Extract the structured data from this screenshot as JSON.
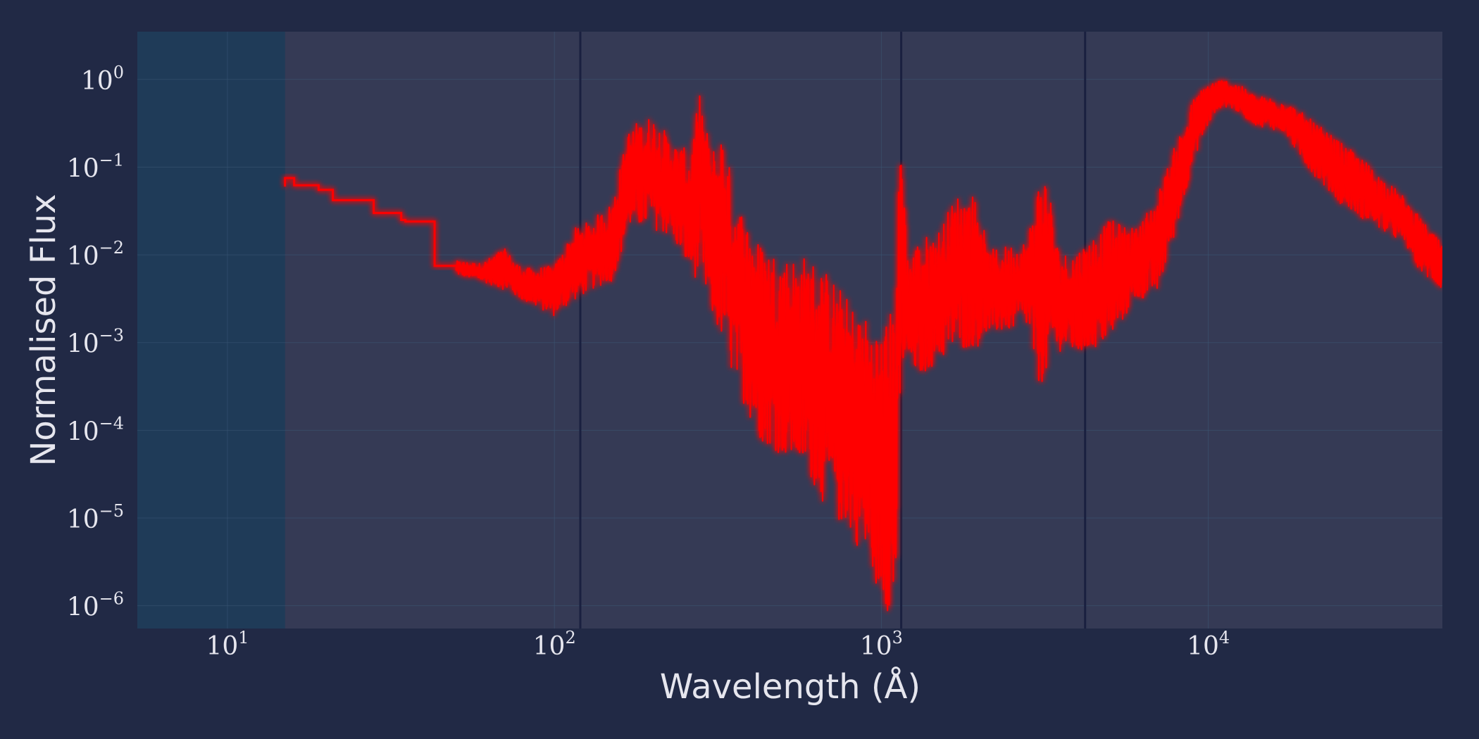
{
  "chart_data": {
    "type": "line",
    "title": "",
    "xlabel": "Wavelength (Å)",
    "ylabel": "Normalised Flux",
    "x_scale": "log",
    "y_scale": "log",
    "xlim": [
      5.3,
      52000
    ],
    "ylim": [
      5.5e-07,
      3.5
    ],
    "grid": true,
    "legend": "none",
    "x_ticks": [
      {
        "value": 10,
        "base": "10",
        "exp": "1"
      },
      {
        "value": 100,
        "base": "10",
        "exp": "2"
      },
      {
        "value": 1000,
        "base": "10",
        "exp": "3"
      },
      {
        "value": 10000,
        "base": "10",
        "exp": "4"
      }
    ],
    "y_ticks": [
      {
        "value": 1,
        "base": "10",
        "exp": "0"
      },
      {
        "value": 0.1,
        "base": "10",
        "exp": "−1"
      },
      {
        "value": 0.01,
        "base": "10",
        "exp": "−2"
      },
      {
        "value": 0.001,
        "base": "10",
        "exp": "−3"
      },
      {
        "value": 0.0001,
        "base": "10",
        "exp": "−4"
      },
      {
        "value": 1e-05,
        "base": "10",
        "exp": "−5"
      },
      {
        "value": 1e-06,
        "base": "10",
        "exp": "−6"
      }
    ],
    "vertical_lines": [
      120,
      1150,
      4200
    ],
    "shaded_region": [
      15,
      52000
    ],
    "colors": {
      "background": "#212945",
      "plot_area": "#1f3b58",
      "shaded": "#353a55",
      "line": "#ff0000",
      "grid": "#3b5874",
      "vline": "#1a2040",
      "text": "#e6e6ee"
    },
    "series": [
      {
        "name": "spectrum",
        "step_envelope": [
          [
            15,
            0.06
          ],
          [
            15,
            0.075
          ],
          [
            16,
            0.075
          ],
          [
            16,
            0.062
          ],
          [
            19,
            0.062
          ],
          [
            19,
            0.055
          ],
          [
            21,
            0.055
          ],
          [
            21,
            0.042
          ],
          [
            28,
            0.042
          ],
          [
            28,
            0.03
          ],
          [
            34,
            0.03
          ],
          [
            34,
            0.025
          ],
          [
            35,
            0.025
          ],
          [
            35,
            0.024
          ],
          [
            43,
            0.024
          ],
          [
            43,
            0.0075
          ],
          [
            50,
            0.0075
          ]
        ],
        "upper_envelope": [
          [
            50,
            0.0085
          ],
          [
            60,
            0.008
          ],
          [
            70,
            0.012
          ],
          [
            80,
            0.007
          ],
          [
            100,
            0.0075
          ],
          [
            115,
            0.02
          ],
          [
            130,
            0.025
          ],
          [
            150,
            0.04
          ],
          [
            170,
            0.3
          ],
          [
            200,
            0.4
          ],
          [
            230,
            0.2
          ],
          [
            260,
            0.15
          ],
          [
            280,
            0.8
          ],
          [
            300,
            0.15
          ],
          [
            330,
            0.3
          ],
          [
            350,
            0.06
          ],
          [
            380,
            0.03
          ],
          [
            420,
            0.015
          ],
          [
            500,
            0.01
          ],
          [
            600,
            0.01
          ],
          [
            700,
            0.006
          ],
          [
            800,
            0.003
          ],
          [
            900,
            0.002
          ],
          [
            1000,
            0.0015
          ],
          [
            1100,
            0.003
          ],
          [
            1150,
            0.5
          ],
          [
            1200,
            0.01
          ],
          [
            1300,
            0.015
          ],
          [
            1500,
            0.02
          ],
          [
            1700,
            0.05
          ],
          [
            2000,
            0.05
          ],
          [
            2100,
            0.011
          ],
          [
            2800,
            0.015
          ],
          [
            3000,
            0.07
          ],
          [
            3200,
            0.1
          ],
          [
            3500,
            0.01
          ],
          [
            4000,
            0.012
          ],
          [
            5000,
            0.025
          ],
          [
            6000,
            0.02
          ],
          [
            7000,
            0.05
          ],
          [
            8000,
            0.2
          ],
          [
            9000,
            0.6
          ],
          [
            10000,
            0.95
          ],
          [
            11000,
            1.0
          ],
          [
            12000,
            0.95
          ],
          [
            14000,
            0.65
          ],
          [
            17000,
            0.6
          ],
          [
            20000,
            0.38
          ],
          [
            25000,
            0.2
          ],
          [
            30000,
            0.12
          ],
          [
            40000,
            0.045
          ],
          [
            45000,
            0.025
          ],
          [
            52000,
            0.013
          ]
        ],
        "lower_envelope": [
          [
            50,
            0.006
          ],
          [
            60,
            0.005
          ],
          [
            70,
            0.004
          ],
          [
            80,
            0.003
          ],
          [
            100,
            0.002
          ],
          [
            115,
            0.003
          ],
          [
            130,
            0.004
          ],
          [
            150,
            0.005
          ],
          [
            170,
            0.02
          ],
          [
            200,
            0.02
          ],
          [
            230,
            0.015
          ],
          [
            260,
            0.006
          ],
          [
            280,
            0.005
          ],
          [
            300,
            0.002
          ],
          [
            330,
            0.0009
          ],
          [
            350,
            0.0004
          ],
          [
            380,
            0.0002
          ],
          [
            420,
            8e-05
          ],
          [
            500,
            5e-05
          ],
          [
            600,
            3e-05
          ],
          [
            700,
            1e-05
          ],
          [
            800,
            7e-06
          ],
          [
            900,
            3e-06
          ],
          [
            1000,
            1.2e-06
          ],
          [
            1100,
            6e-07
          ],
          [
            1150,
            0.0004
          ],
          [
            1200,
            0.0005
          ],
          [
            1300,
            0.0004
          ],
          [
            1500,
            0.0006
          ],
          [
            1700,
            0.0008
          ],
          [
            2000,
            0.0009
          ],
          [
            2100,
            0.0012
          ],
          [
            2800,
            0.0015
          ],
          [
            3000,
            0.0003
          ],
          [
            3200,
            0.0004
          ],
          [
            3500,
            0.0008
          ],
          [
            4000,
            0.0007
          ],
          [
            5000,
            0.001
          ],
          [
            6000,
            0.003
          ],
          [
            7000,
            0.0035
          ],
          [
            8000,
            0.02
          ],
          [
            9000,
            0.12
          ],
          [
            10000,
            0.3
          ],
          [
            11000,
            0.5
          ],
          [
            12000,
            0.45
          ],
          [
            14000,
            0.3
          ],
          [
            17000,
            0.25
          ],
          [
            20000,
            0.1
          ],
          [
            25000,
            0.04
          ],
          [
            30000,
            0.025
          ],
          [
            40000,
            0.013
          ],
          [
            45000,
            0.006
          ],
          [
            52000,
            0.004
          ]
        ],
        "absorption_lines": [
          [
            165,
            0.01
          ],
          [
            240,
            0.03
          ],
          [
            290,
            0.01
          ],
          [
            400,
            0.0003
          ],
          [
            470,
            0.0001
          ],
          [
            560,
            3e-05
          ],
          [
            700,
            6e-06
          ],
          [
            850,
            2e-06
          ],
          [
            1000,
            1e-06
          ],
          [
            1210,
            5.5e-07
          ],
          [
            1650,
            0.0002
          ],
          [
            2800,
            7e-05
          ],
          [
            4200,
            0.0005
          ],
          [
            6000,
            8e-05
          ],
          [
            7700,
            0.001
          ],
          [
            12600,
            0.2
          ]
        ],
        "emission_spikes": [
          [
            160,
            0.2
          ],
          [
            190,
            0.35
          ],
          [
            270,
            0.2
          ],
          [
            288,
            0.85
          ],
          [
            340,
            0.4
          ],
          [
            500,
            0.05
          ],
          [
            640,
            0.08
          ],
          [
            760,
            0.025
          ],
          [
            950,
            0.03
          ],
          [
            1170,
            0.6
          ],
          [
            1600,
            0.05
          ],
          [
            1850,
            0.06
          ],
          [
            3050,
            0.05
          ],
          [
            3300,
            0.1
          ]
        ]
      }
    ]
  }
}
